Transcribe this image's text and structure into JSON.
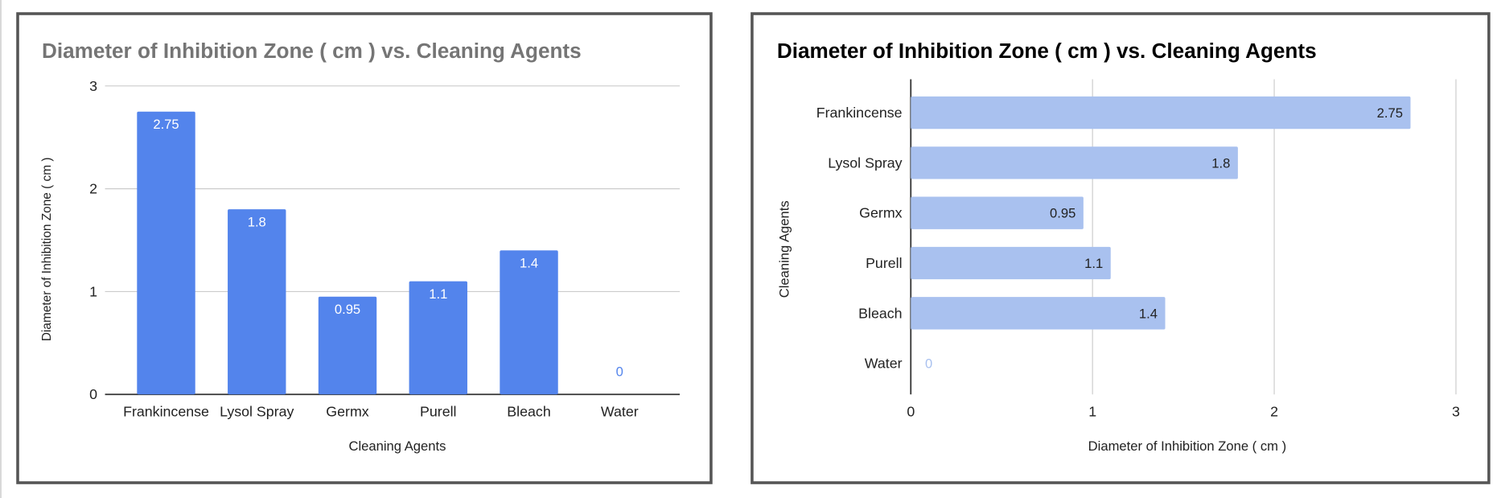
{
  "chart_data": [
    {
      "type": "bar",
      "orientation": "vertical",
      "title": "Diameter of Inhibition Zone ( cm ) vs. Cleaning Agents",
      "xlabel": "Cleaning Agents",
      "ylabel": "Diameter of Inhibition Zone ( cm )",
      "categories": [
        "Frankincense",
        "Lysol Spray",
        "Germx",
        "Purell",
        "Bleach",
        "Water"
      ],
      "values": [
        2.75,
        1.8,
        0.95,
        1.1,
        1.4,
        0
      ],
      "data_labels": [
        "2.75",
        "1.8",
        "0.95",
        "1.1",
        "1.4",
        "0"
      ],
      "ylim": [
        0,
        3
      ],
      "ticks": [
        "0",
        "1",
        "2",
        "3"
      ],
      "grid": true,
      "bar_color": "#5384ec",
      "title_color": "#757575"
    },
    {
      "type": "bar",
      "orientation": "horizontal",
      "title": "Diameter of Inhibition Zone ( cm ) vs. Cleaning Agents",
      "xlabel": "Diameter of Inhibition Zone ( cm )",
      "ylabel": "Cleaning Agents",
      "categories": [
        "Frankincense",
        "Lysol Spray",
        "Germx",
        "Purell",
        "Bleach",
        "Water"
      ],
      "values": [
        2.75,
        1.8,
        0.95,
        1.1,
        1.4,
        0
      ],
      "data_labels": [
        "2.75",
        "1.8",
        "0.95",
        "1.1",
        "1.4",
        "0"
      ],
      "xlim": [
        0,
        3
      ],
      "ticks": [
        "0",
        "1",
        "2",
        "3"
      ],
      "grid": true,
      "bar_color": "#a9c1ef",
      "title_color": "#000000"
    }
  ]
}
